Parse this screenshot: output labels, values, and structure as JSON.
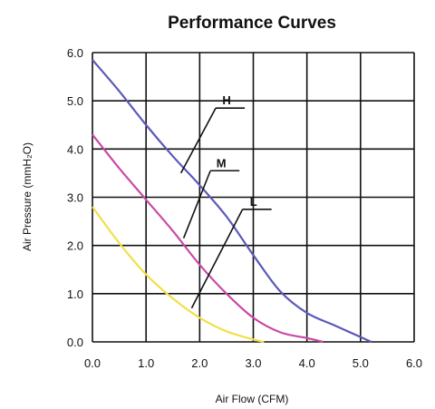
{
  "chart_data": {
    "type": "line",
    "title": "Performance Curves",
    "xlabel": "Air Flow (CFM)",
    "ylabel": "Air Pressure (mmH₂O)",
    "xlim": [
      0,
      6
    ],
    "ylim": [
      0,
      6
    ],
    "x_ticks": [
      "0.0",
      "1.0",
      "2.0",
      "3.0",
      "4.0",
      "5.0",
      "6.0"
    ],
    "y_ticks": [
      "0.0",
      "1.0",
      "2.0",
      "3.0",
      "4.0",
      "5.0",
      "6.0"
    ],
    "grid": true,
    "series": [
      {
        "name": "H",
        "color": "#5a5ab8",
        "points": [
          [
            0,
            5.85
          ],
          [
            0.5,
            5.2
          ],
          [
            1.0,
            4.5
          ],
          [
            1.5,
            3.85
          ],
          [
            2.0,
            3.25
          ],
          [
            2.5,
            2.6
          ],
          [
            3.0,
            1.8
          ],
          [
            3.5,
            1.05
          ],
          [
            4.0,
            0.6
          ],
          [
            4.5,
            0.35
          ],
          [
            5.0,
            0.1
          ],
          [
            5.2,
            0
          ]
        ]
      },
      {
        "name": "M",
        "color": "#c84aa6",
        "points": [
          [
            0,
            4.3
          ],
          [
            0.5,
            3.6
          ],
          [
            1.0,
            2.95
          ],
          [
            1.5,
            2.3
          ],
          [
            2.0,
            1.6
          ],
          [
            2.5,
            1.0
          ],
          [
            3.0,
            0.5
          ],
          [
            3.5,
            0.2
          ],
          [
            4.0,
            0.08
          ],
          [
            4.3,
            0
          ]
        ]
      },
      {
        "name": "L",
        "color": "#f2e04a",
        "points": [
          [
            0,
            2.8
          ],
          [
            0.5,
            2.05
          ],
          [
            1.0,
            1.4
          ],
          [
            1.5,
            0.9
          ],
          [
            2.0,
            0.5
          ],
          [
            2.5,
            0.22
          ],
          [
            3.0,
            0.05
          ],
          [
            3.2,
            0
          ]
        ]
      }
    ],
    "annotations": [
      {
        "label": "H",
        "series": "H",
        "at": [
          1.65,
          3.5
        ],
        "label_at": [
          2.3,
          4.85
        ]
      },
      {
        "label": "M",
        "series": "M",
        "at": [
          1.7,
          2.15
        ],
        "label_at": [
          2.2,
          3.55
        ]
      },
      {
        "label": "L",
        "series": "L",
        "at": [
          1.85,
          0.7
        ],
        "label_at": [
          2.8,
          2.75
        ]
      }
    ]
  }
}
